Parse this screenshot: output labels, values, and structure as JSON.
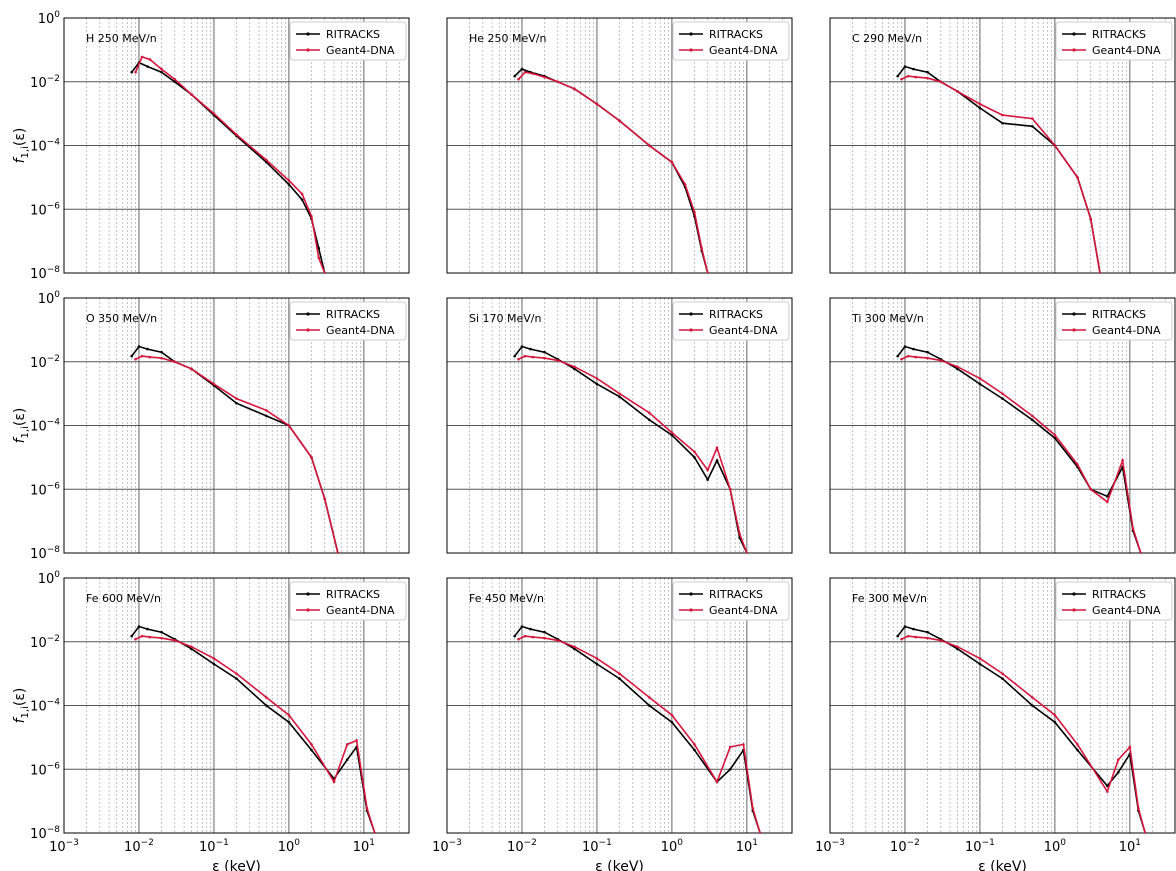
{
  "figure": {
    "xlabel": "ε (keV)",
    "ylabel_main": "f",
    "ylabel_sub": "1,i",
    "ylabel_arg": "(ε)",
    "legend": [
      "RITRACKS",
      "Geant4-DNA"
    ],
    "colors": {
      "RITRACKS": "#000000",
      "Geant4-DNA": "#d6163b"
    }
  },
  "chart_data": [
    {
      "type": "line",
      "title": "H 250 MeV/n",
      "xscale": "log",
      "yscale": "log",
      "xlim": [
        0.001,
        40
      ],
      "ylim": [
        1e-08,
        1
      ],
      "grid": true,
      "legend_loc": "upper right",
      "xticks": [
        "10^-3",
        "10^-2",
        "10^-1",
        "10^0",
        "10^1"
      ],
      "yticks": [
        "10^0",
        "10^-2",
        "10^-4",
        "10^-6",
        "10^-8"
      ],
      "series": [
        {
          "name": "RITRACKS",
          "x": [
            0.008,
            0.01,
            0.013,
            0.02,
            0.03,
            0.05,
            0.1,
            0.2,
            0.5,
            1,
            1.5,
            2,
            2.5,
            3
          ],
          "y": [
            0.02,
            0.04,
            0.03,
            0.02,
            0.01,
            0.004,
            0.0009,
            0.0002,
            3e-05,
            6e-06,
            2e-06,
            5e-07,
            6e-08,
            1e-08
          ]
        },
        {
          "name": "Geant4-DNA",
          "x": [
            0.009,
            0.011,
            0.014,
            0.02,
            0.03,
            0.05,
            0.1,
            0.2,
            0.5,
            1,
            1.5,
            2,
            2.5,
            3
          ],
          "y": [
            0.02,
            0.06,
            0.05,
            0.025,
            0.012,
            0.004,
            0.001,
            0.00022,
            3.5e-05,
            8e-06,
            3e-06,
            6e-07,
            3e-08,
            1e-08
          ]
        }
      ]
    },
    {
      "type": "line",
      "title": "He 250 MeV/n",
      "xscale": "log",
      "yscale": "log",
      "xlim": [
        0.001,
        40
      ],
      "ylim": [
        1e-08,
        1
      ],
      "grid": true,
      "legend_loc": "upper right",
      "series": [
        {
          "name": "RITRACKS",
          "x": [
            0.008,
            0.01,
            0.013,
            0.02,
            0.03,
            0.05,
            0.1,
            0.2,
            0.5,
            1,
            1.5,
            2,
            2.5,
            3
          ],
          "y": [
            0.015,
            0.025,
            0.02,
            0.015,
            0.01,
            0.006,
            0.002,
            0.0006,
            0.0001,
            3e-05,
            5e-06,
            6e-07,
            5e-08,
            1e-08
          ]
        },
        {
          "name": "Geant4-DNA",
          "x": [
            0.009,
            0.011,
            0.014,
            0.02,
            0.03,
            0.05,
            0.1,
            0.2,
            0.5,
            1,
            1.5,
            2,
            2.5,
            3
          ],
          "y": [
            0.012,
            0.02,
            0.018,
            0.014,
            0.01,
            0.006,
            0.002,
            0.0006,
            0.0001,
            3e-05,
            6e-06,
            8e-07,
            6e-08,
            1e-08
          ]
        }
      ]
    },
    {
      "type": "line",
      "title": "C 290 MeV/n",
      "xscale": "log",
      "yscale": "log",
      "xlim": [
        0.001,
        40
      ],
      "ylim": [
        1e-08,
        1
      ],
      "grid": true,
      "legend_loc": "upper right",
      "series": [
        {
          "name": "RITRACKS",
          "x": [
            0.008,
            0.01,
            0.013,
            0.02,
            0.03,
            0.05,
            0.1,
            0.2,
            0.5,
            1,
            2,
            3,
            4
          ],
          "y": [
            0.015,
            0.03,
            0.025,
            0.02,
            0.01,
            0.005,
            0.0015,
            0.0005,
            0.0004,
            0.0001,
            1e-05,
            5e-07,
            1e-08
          ]
        },
        {
          "name": "Geant4-DNA",
          "x": [
            0.009,
            0.011,
            0.014,
            0.02,
            0.03,
            0.05,
            0.1,
            0.2,
            0.5,
            1,
            2,
            3,
            4
          ],
          "y": [
            0.012,
            0.015,
            0.014,
            0.013,
            0.01,
            0.005,
            0.002,
            0.0009,
            0.0007,
            0.0001,
            1e-05,
            5e-07,
            1e-08
          ]
        }
      ]
    },
    {
      "type": "line",
      "title": "O 350 MeV/n",
      "xscale": "log",
      "yscale": "log",
      "xlim": [
        0.001,
        40
      ],
      "ylim": [
        1e-08,
        1
      ],
      "grid": true,
      "legend_loc": "upper right",
      "series": [
        {
          "name": "RITRACKS",
          "x": [
            0.008,
            0.01,
            0.013,
            0.02,
            0.03,
            0.05,
            0.1,
            0.2,
            0.5,
            1,
            2,
            3,
            4.5
          ],
          "y": [
            0.015,
            0.03,
            0.025,
            0.02,
            0.01,
            0.006,
            0.0018,
            0.0005,
            0.0002,
            0.0001,
            1e-05,
            5e-07,
            1e-08
          ]
        },
        {
          "name": "Geant4-DNA",
          "x": [
            0.009,
            0.011,
            0.014,
            0.02,
            0.03,
            0.05,
            0.1,
            0.2,
            0.5,
            1,
            2,
            3,
            4.5
          ],
          "y": [
            0.012,
            0.015,
            0.014,
            0.013,
            0.01,
            0.006,
            0.002,
            0.0007,
            0.0003,
            0.0001,
            1e-05,
            5e-07,
            1e-08
          ]
        }
      ]
    },
    {
      "type": "line",
      "title": "Si 170 MeV/n",
      "xscale": "log",
      "yscale": "log",
      "xlim": [
        0.001,
        40
      ],
      "ylim": [
        1e-08,
        1
      ],
      "grid": true,
      "legend_loc": "upper right",
      "series": [
        {
          "name": "RITRACKS",
          "x": [
            0.008,
            0.01,
            0.013,
            0.02,
            0.03,
            0.05,
            0.1,
            0.2,
            0.5,
            1,
            2,
            3,
            4,
            6,
            8,
            10
          ],
          "y": [
            0.015,
            0.03,
            0.025,
            0.02,
            0.012,
            0.006,
            0.002,
            0.0008,
            0.00015,
            5e-05,
            1e-05,
            2e-06,
            8e-06,
            1e-06,
            3e-08,
            1e-08
          ]
        },
        {
          "name": "Geant4-DNA",
          "x": [
            0.009,
            0.011,
            0.014,
            0.02,
            0.03,
            0.05,
            0.1,
            0.2,
            0.5,
            1,
            2,
            3,
            4,
            6,
            8,
            10
          ],
          "y": [
            0.012,
            0.015,
            0.014,
            0.013,
            0.011,
            0.007,
            0.003,
            0.001,
            0.00025,
            6e-05,
            1.5e-05,
            4e-06,
            2e-05,
            1e-06,
            4e-08,
            1e-08
          ]
        }
      ]
    },
    {
      "type": "line",
      "title": "Ti 300 MeV/n",
      "xscale": "log",
      "yscale": "log",
      "xlim": [
        0.001,
        40
      ],
      "ylim": [
        1e-08,
        1
      ],
      "grid": true,
      "legend_loc": "upper right",
      "series": [
        {
          "name": "RITRACKS",
          "x": [
            0.008,
            0.01,
            0.013,
            0.02,
            0.03,
            0.05,
            0.1,
            0.2,
            0.5,
            1,
            2,
            3,
            5,
            8,
            11,
            14
          ],
          "y": [
            0.015,
            0.03,
            0.025,
            0.02,
            0.012,
            0.006,
            0.002,
            0.0007,
            0.00015,
            4e-05,
            5e-06,
            1e-06,
            6e-07,
            5e-06,
            5e-08,
            1e-08
          ]
        },
        {
          "name": "Geant4-DNA",
          "x": [
            0.009,
            0.011,
            0.014,
            0.02,
            0.03,
            0.05,
            0.1,
            0.2,
            0.5,
            1,
            2,
            3,
            5,
            8,
            11,
            14
          ],
          "y": [
            0.012,
            0.015,
            0.014,
            0.013,
            0.011,
            0.007,
            0.003,
            0.001,
            0.0002,
            5e-05,
            6e-06,
            1e-06,
            4e-07,
            8e-06,
            6e-08,
            1e-08
          ]
        }
      ]
    },
    {
      "type": "line",
      "title": "Fe 600 MeV/n",
      "xscale": "log",
      "yscale": "log",
      "xlim": [
        0.001,
        40
      ],
      "ylim": [
        1e-08,
        1
      ],
      "grid": true,
      "legend_loc": "upper right",
      "series": [
        {
          "name": "RITRACKS",
          "x": [
            0.008,
            0.01,
            0.013,
            0.02,
            0.03,
            0.05,
            0.1,
            0.2,
            0.5,
            1,
            2,
            4,
            6,
            8,
            11,
            14
          ],
          "y": [
            0.015,
            0.03,
            0.025,
            0.02,
            0.012,
            0.006,
            0.002,
            0.0007,
            0.0001,
            3e-05,
            4e-06,
            5e-07,
            2e-06,
            5e-06,
            5e-08,
            1e-08
          ]
        },
        {
          "name": "Geant4-DNA",
          "x": [
            0.009,
            0.011,
            0.014,
            0.02,
            0.03,
            0.05,
            0.1,
            0.2,
            0.5,
            1,
            2,
            4,
            6,
            8,
            11,
            14
          ],
          "y": [
            0.012,
            0.015,
            0.014,
            0.013,
            0.011,
            0.007,
            0.003,
            0.001,
            0.00018,
            5e-05,
            6e-06,
            4e-07,
            6e-06,
            8e-06,
            6e-08,
            1e-08
          ]
        }
      ]
    },
    {
      "type": "line",
      "title": "Fe 450 MeV/n",
      "xscale": "log",
      "yscale": "log",
      "xlim": [
        0.001,
        40
      ],
      "ylim": [
        1e-08,
        1
      ],
      "grid": true,
      "legend_loc": "upper right",
      "series": [
        {
          "name": "RITRACKS",
          "x": [
            0.008,
            0.01,
            0.013,
            0.02,
            0.03,
            0.05,
            0.1,
            0.2,
            0.5,
            1,
            2,
            4,
            6,
            9,
            12,
            15
          ],
          "y": [
            0.015,
            0.03,
            0.025,
            0.02,
            0.012,
            0.006,
            0.002,
            0.0007,
            0.0001,
            3e-05,
            4e-06,
            4e-07,
            1e-06,
            4e-06,
            5e-08,
            1e-08
          ]
        },
        {
          "name": "Geant4-DNA",
          "x": [
            0.009,
            0.011,
            0.014,
            0.02,
            0.03,
            0.05,
            0.1,
            0.2,
            0.5,
            1,
            2,
            4,
            6,
            9,
            12,
            15
          ],
          "y": [
            0.012,
            0.015,
            0.014,
            0.013,
            0.011,
            0.007,
            0.003,
            0.001,
            0.00018,
            5e-05,
            6e-06,
            4e-07,
            5e-06,
            6e-06,
            6e-08,
            1e-08
          ]
        }
      ]
    },
    {
      "type": "line",
      "title": "Fe 300 MeV/n",
      "xscale": "log",
      "yscale": "log",
      "xlim": [
        0.001,
        40
      ],
      "ylim": [
        1e-08,
        1
      ],
      "grid": true,
      "legend_loc": "upper right",
      "series": [
        {
          "name": "RITRACKS",
          "x": [
            0.008,
            0.01,
            0.013,
            0.02,
            0.03,
            0.05,
            0.1,
            0.2,
            0.5,
            1,
            2,
            5,
            7,
            10,
            13,
            16
          ],
          "y": [
            0.015,
            0.03,
            0.025,
            0.02,
            0.012,
            0.006,
            0.002,
            0.0007,
            0.0001,
            3e-05,
            4e-06,
            3e-07,
            8e-07,
            3e-06,
            5e-08,
            1e-08
          ]
        },
        {
          "name": "Geant4-DNA",
          "x": [
            0.009,
            0.011,
            0.014,
            0.02,
            0.03,
            0.05,
            0.1,
            0.2,
            0.5,
            1,
            2,
            5,
            7,
            10,
            13,
            16
          ],
          "y": [
            0.012,
            0.015,
            0.014,
            0.013,
            0.011,
            0.007,
            0.003,
            0.001,
            0.00018,
            5e-05,
            6e-06,
            2e-07,
            2e-06,
            5e-06,
            6e-08,
            1e-08
          ]
        }
      ]
    }
  ]
}
